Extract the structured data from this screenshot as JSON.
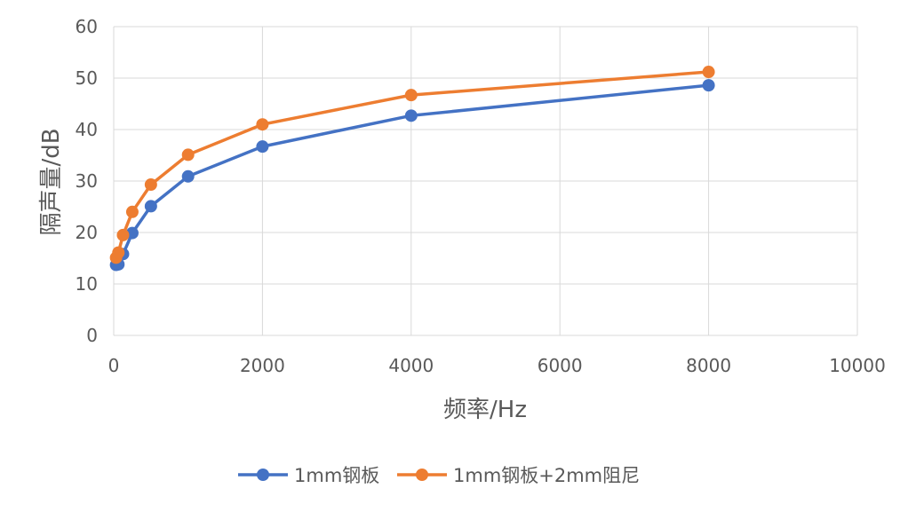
{
  "chart_data": {
    "type": "line",
    "title": "",
    "xlabel": "频率/Hz",
    "ylabel": "隔声量/dB",
    "xlim": [
      0,
      10000
    ],
    "ylim": [
      0,
      60
    ],
    "x_ticks": [
      "0",
      "2000",
      "4000",
      "6000",
      "8000",
      "10000"
    ],
    "y_ticks": [
      "0",
      "10",
      "20",
      "30",
      "40",
      "50",
      "60"
    ],
    "grid": true,
    "legend_position": "bottom",
    "series": [
      {
        "name": "1mm钢板",
        "color": "#4472C4",
        "x": [
          31.5,
          63,
          125,
          250,
          500,
          1000,
          2000,
          4000,
          8000
        ],
        "y": [
          13.7,
          13.8,
          15.8,
          19.9,
          25.1,
          30.9,
          36.7,
          42.7,
          48.6
        ]
      },
      {
        "name": "1mm钢板+2mm阻尼",
        "color": "#ED7D31",
        "x": [
          31.5,
          63,
          125,
          250,
          500,
          1000,
          2000,
          4000,
          8000
        ],
        "y": [
          15.1,
          16.1,
          19.5,
          24.0,
          29.3,
          35.1,
          41.0,
          46.7,
          51.2
        ]
      }
    ]
  }
}
